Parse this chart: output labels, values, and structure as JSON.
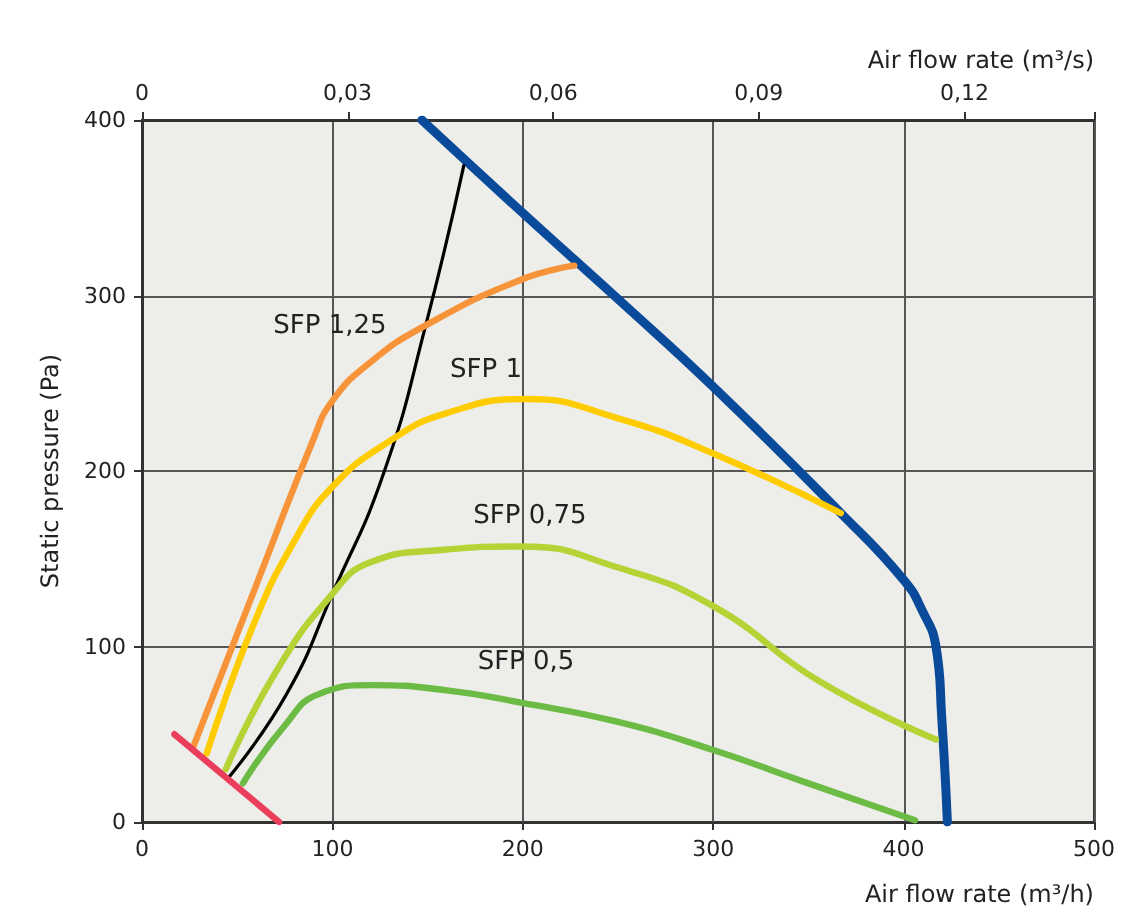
{
  "chart_data": {
    "type": "line",
    "xlabel": "Air flow rate (m³/h)",
    "ylabel": "Static pressure (Pa)",
    "x2label": "Air flow rate (m³/s)",
    "xlim": [
      0,
      500
    ],
    "xticks": [
      0,
      100,
      200,
      300,
      400,
      500
    ],
    "ylim": [
      0,
      400
    ],
    "yticks": [
      0,
      100,
      200,
      300,
      400
    ],
    "x2lim": [
      0,
      0.1389
    ],
    "x2ticks": [
      0,
      {
        "value": 0.03,
        "label": "0,03"
      },
      {
        "value": 0.06,
        "label": "0,06"
      },
      {
        "value": 0.09,
        "label": "0,09"
      },
      {
        "value": 0.12,
        "label": "0,12"
      }
    ],
    "grid": true,
    "marker": "none",
    "line_style": "solid",
    "series": [
      {
        "color": "#0a4a9a",
        "x": [
          147,
          200,
          251,
          300,
          367,
          400,
          410,
          417,
          420,
          423
        ],
        "values": [
          400,
          347,
          297,
          248,
          176,
          138,
          120,
          100,
          60,
          0
        ]
      },
      {
        "color": "#000000",
        "x": [
          46,
          76,
          100,
          127,
          149,
          169
        ],
        "values": [
          26,
          73,
          130,
          199,
          283,
          374
        ]
      },
      {
        "color": "#f7943a",
        "x": [
          27,
          60,
          90,
          100,
          120,
          149,
          199,
          227
        ],
        "values": [
          43,
          135,
          218,
          240,
          262,
          283,
          309,
          317
        ]
      },
      {
        "color": "#ffcc00",
        "x": [
          34,
          58,
          80,
          100,
          130,
          160,
          202,
          250,
          300,
          367
        ],
        "values": [
          39,
          111,
          160,
          191,
          217,
          233,
          241,
          230,
          210,
          176
        ]
      },
      {
        "color": "#b5d334",
        "x": [
          44,
          70,
          100,
          120,
          157,
          199,
          250,
          300,
          356,
          417
        ],
        "values": [
          30,
          85,
          130,
          148,
          155,
          157,
          145,
          123,
          80,
          47
        ]
      },
      {
        "color": "#6cbb45",
        "x": [
          53,
          75,
          93,
          121,
          160,
          199,
          250,
          300,
          350,
          406
        ],
        "values": [
          22,
          55,
          73,
          78,
          75,
          68,
          57,
          41,
          22,
          1
        ]
      },
      {
        "color": "#ea3e5b",
        "x": [
          17,
          72
        ],
        "values": [
          50,
          0
        ]
      }
    ],
    "annotations": [
      "SFP 1,25",
      "SFP 1",
      "SFP 0,75",
      "SFP 0,5"
    ]
  }
}
